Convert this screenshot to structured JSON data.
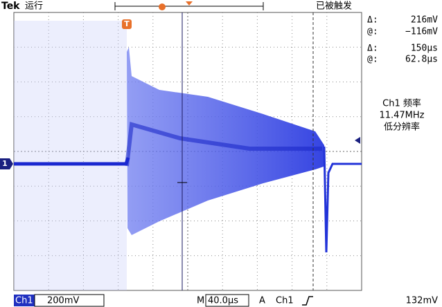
{
  "header": {
    "brand": "Tek",
    "status": "运行",
    "trigger_state": "已被触发"
  },
  "cursor_readout": {
    "v_delta_label": "Δ:",
    "v_delta": "216mV",
    "v_at_label": "@:",
    "v_at": "−116mV",
    "t_delta_label": "Δ:",
    "t_delta": "150µs",
    "t_at_label": "@:",
    "t_at": "62.8µs"
  },
  "measurement": {
    "line1": "Ch1 频率",
    "line2": "11.47MHz",
    "line3": "低分辨率"
  },
  "markers": {
    "trigger": "T",
    "channel": "1"
  },
  "footer": {
    "channel": "Ch1",
    "volts_div": "200mV",
    "time_label": "M",
    "time_div": "40.0µs",
    "trigger_mode": "A",
    "trigger_source": "Ch1",
    "trigger_level": "132mV"
  }
}
